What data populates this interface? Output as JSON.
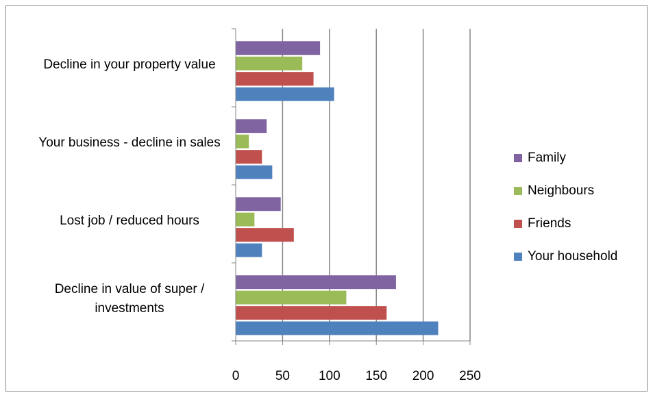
{
  "chart_data": {
    "type": "bar",
    "orientation": "horizontal",
    "categories": [
      "Decline in your property value",
      "Your business - decline in sales",
      "Lost job / reduced hours",
      "Decline in value of super / investments"
    ],
    "series": [
      {
        "name": "Family",
        "color": "#8064a2",
        "values": [
          90,
          33,
          48,
          171
        ]
      },
      {
        "name": "Neighbours",
        "color": "#9bbb59",
        "values": [
          71,
          14,
          20,
          118
        ]
      },
      {
        "name": "Friends",
        "color": "#c0504d",
        "values": [
          83,
          28,
          62,
          161
        ]
      },
      {
        "name": "Your household",
        "color": "#4f81bd",
        "values": [
          105,
          39,
          28,
          216
        ]
      }
    ],
    "xlim": [
      0,
      250
    ],
    "xticks": [
      0,
      50,
      100,
      150,
      200,
      250
    ],
    "grid": true,
    "legend": "right"
  }
}
